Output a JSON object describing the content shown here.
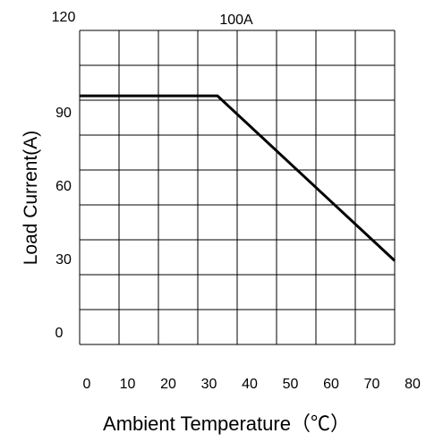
{
  "chart_data": {
    "type": "line",
    "title": "100A",
    "xlabel": "Ambient Temperature（℃）",
    "ylabel": "Load Current(A)",
    "xlim": [
      0,
      80
    ],
    "ylim": [
      0,
      120
    ],
    "x_ticks": [
      "0",
      "10",
      "20",
      "30",
      "40",
      "50",
      "60",
      "70",
      "80"
    ],
    "y_ticks": [
      "0",
      "30",
      "60",
      "90",
      "120"
    ],
    "grid": true,
    "series": [
      {
        "x": [
          0,
          35,
          80
        ],
        "y": [
          95,
          95,
          32
        ]
      }
    ]
  }
}
